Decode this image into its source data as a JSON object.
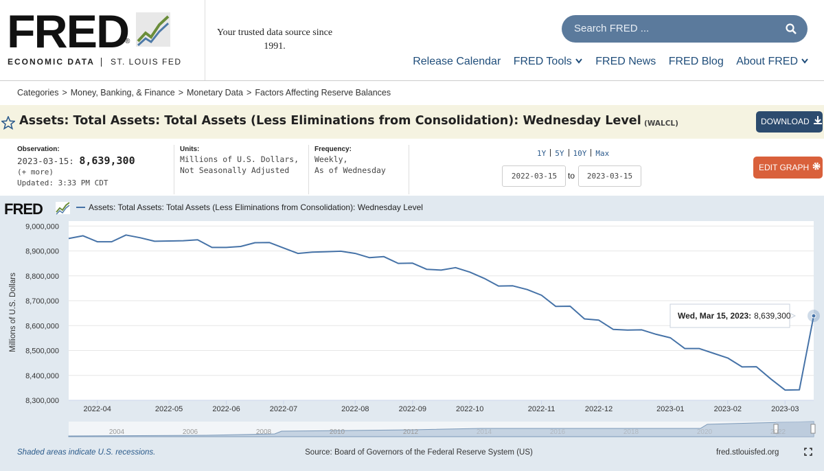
{
  "header": {
    "logo": "FRED",
    "logo_mark": "®",
    "logo_sub_left": "ECONOMIC DATA",
    "logo_sub_right": "ST. LOUIS FED",
    "tagline": "Your trusted data source since 1991.",
    "search_placeholder": "Search FRED ...",
    "nav": [
      "Release Calendar",
      "FRED Tools",
      "FRED News",
      "FRED Blog",
      "About FRED"
    ]
  },
  "breadcrumbs": {
    "separator": ">",
    "items": [
      "Categories",
      "Money, Banking, & Finance",
      "Monetary Data",
      "Factors Affecting Reserve Balances"
    ]
  },
  "series_header": {
    "title": "Assets: Total Assets: Total Assets (Less Eliminations from Consolidation): Wednesday Level",
    "code": "(WALCL)",
    "download": "DOWNLOAD",
    "edit_graph": "EDIT GRAPH"
  },
  "meta": {
    "observation_label": "Observation:",
    "observation_date": "2023-03-15:",
    "observation_value": "8,639,300",
    "more": "(+ more)",
    "updated": "Updated: 3:33 PM CDT",
    "units_label": "Units:",
    "units": [
      "Millions of U.S. Dollars,",
      "Not Seasonally Adjusted"
    ],
    "frequency_label": "Frequency:",
    "frequency": [
      "Weekly,",
      "As of Wednesday"
    ],
    "ranges": [
      "1Y",
      "5Y",
      "10Y",
      "Max"
    ],
    "date_from": "2022-03-15",
    "date_to_word": "to",
    "date_to": "2023-03-15"
  },
  "chart_data": {
    "type": "line",
    "brand": "FRED",
    "ylabel": "Millions of U.S. Dollars",
    "categories": [
      null,
      null,
      "2022-04",
      null,
      null,
      null,
      null,
      "2022-05",
      null,
      null,
      null,
      "2022-06",
      null,
      null,
      null,
      "2022-07",
      null,
      null,
      null,
      null,
      "2022-08",
      null,
      null,
      null,
      "2022-09",
      null,
      null,
      null,
      "2022-10",
      null,
      null,
      null,
      null,
      "2022-11",
      null,
      null,
      null,
      "2022-12",
      null,
      null,
      null,
      null,
      "2023-01",
      null,
      null,
      null,
      "2023-02",
      null,
      null,
      null,
      "2023-03",
      null,
      null
    ],
    "series": [
      {
        "name": "Assets: Total Assets: Total Assets (Less Eliminations from Consolidation): Wednesday Level",
        "color": "#4572a7",
        "values": [
          8950000,
          8961000,
          8937000,
          8937000,
          8964000,
          8953000,
          8939000,
          8940000,
          8941000,
          8945000,
          8914000,
          8914000,
          8918000,
          8933000,
          8934000,
          8912000,
          8890000,
          8895000,
          8897000,
          8899000,
          8890000,
          8873000,
          8877000,
          8850000,
          8851000,
          8826000,
          8823000,
          8833000,
          8815000,
          8790000,
          8759000,
          8760000,
          8745000,
          8722000,
          8677000,
          8678000,
          8627000,
          8622000,
          8585000,
          8582000,
          8583000,
          8565000,
          8551000,
          8508000,
          8508000,
          8489000,
          8470000,
          8434000,
          8435000,
          8386000,
          8341000,
          8342000,
          8639300
        ]
      }
    ],
    "ylim": [
      8300000,
      9020000
    ],
    "yticks": [
      {
        "value": 8300000,
        "label": "8,300,000"
      },
      {
        "value": 8400000,
        "label": "8,400,000"
      },
      {
        "value": 8500000,
        "label": "8,500,000"
      },
      {
        "value": 8600000,
        "label": "8,600,000"
      },
      {
        "value": 8700000,
        "label": "8,700,000"
      },
      {
        "value": 8800000,
        "label": "8,800,000"
      },
      {
        "value": 8900000,
        "label": "8,900,000"
      },
      {
        "value": 9000000,
        "label": "9,000,000"
      }
    ],
    "grid": true,
    "tooltip": {
      "date": "Wed, Mar 15, 2023:",
      "value": "8,639,300"
    },
    "navigator_years": [
      "2004",
      "2006",
      "2008",
      "2010",
      "2012",
      "2014",
      "2016",
      "2018",
      "2020",
      "2022"
    ],
    "footer_note": "Shaded areas indicate U.S. recessions.",
    "source": "Source: Board of Governors of the Federal Reserve System (US)",
    "site": "fred.stlouisfed.org"
  }
}
